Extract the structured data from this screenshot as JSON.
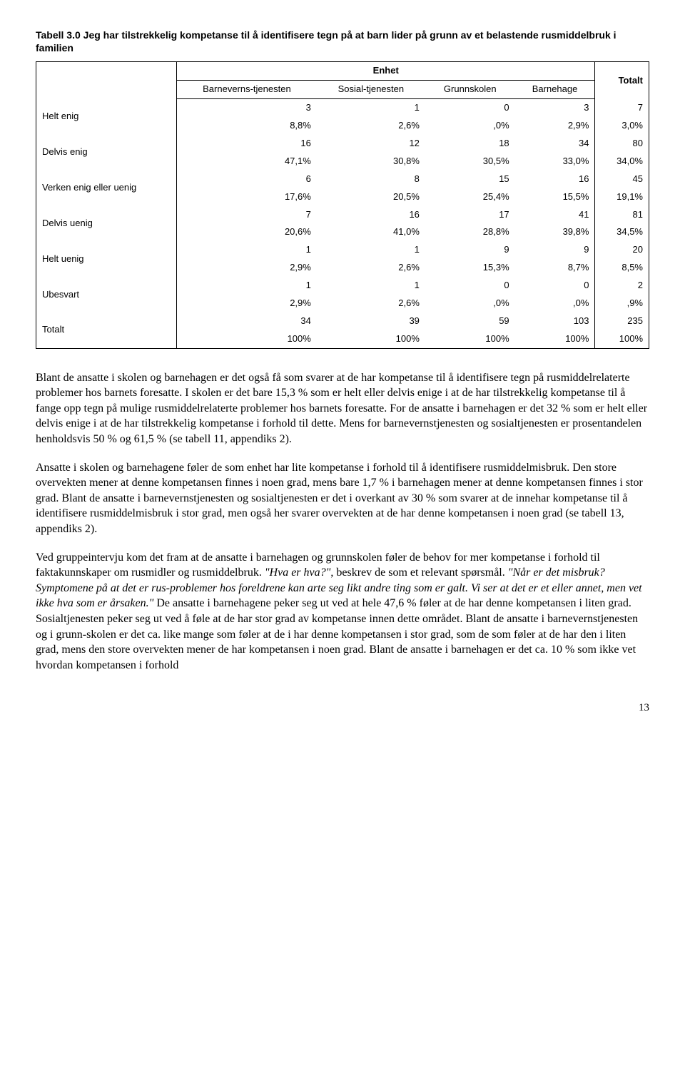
{
  "table": {
    "title": "Tabell 3.0 Jeg har tilstrekkelig kompetanse til å identifisere tegn på at barn lider på grunn av et belastende rusmiddelbruk i familien",
    "group_header": "Enhet",
    "columns": [
      "Barneverns-tjenesten",
      "Sosial-tjenesten",
      "Grunnskolen",
      "Barnehage"
    ],
    "totalt_header": "Totalt",
    "rows": [
      {
        "label": "Helt enig",
        "counts": [
          "3",
          "1",
          "0",
          "3",
          "7"
        ],
        "pcts": [
          "8,8%",
          "2,6%",
          ",0%",
          "2,9%",
          "3,0%"
        ]
      },
      {
        "label": "Delvis enig",
        "counts": [
          "16",
          "12",
          "18",
          "34",
          "80"
        ],
        "pcts": [
          "47,1%",
          "30,8%",
          "30,5%",
          "33,0%",
          "34,0%"
        ]
      },
      {
        "label": "Verken enig eller uenig",
        "counts": [
          "6",
          "8",
          "15",
          "16",
          "45"
        ],
        "pcts": [
          "17,6%",
          "20,5%",
          "25,4%",
          "15,5%",
          "19,1%"
        ]
      },
      {
        "label": "Delvis uenig",
        "counts": [
          "7",
          "16",
          "17",
          "41",
          "81"
        ],
        "pcts": [
          "20,6%",
          "41,0%",
          "28,8%",
          "39,8%",
          "34,5%"
        ]
      },
      {
        "label": "Helt uenig",
        "counts": [
          "1",
          "1",
          "9",
          "9",
          "20"
        ],
        "pcts": [
          "2,9%",
          "2,6%",
          "15,3%",
          "8,7%",
          "8,5%"
        ]
      },
      {
        "label": "Ubesvart",
        "counts": [
          "1",
          "1",
          "0",
          "0",
          "2"
        ],
        "pcts": [
          "2,9%",
          "2,6%",
          ",0%",
          ",0%",
          ",9%"
        ]
      },
      {
        "label": "Totalt",
        "counts": [
          "34",
          "39",
          "59",
          "103",
          "235"
        ],
        "pcts": [
          "100%",
          "100%",
          "100%",
          "100%",
          "100%"
        ]
      }
    ]
  },
  "paragraphs": {
    "p1": "Blant de ansatte i skolen og barnehagen er det også få som svarer at de har kompetanse til å identifisere tegn på rusmiddelrelaterte problemer hos barnets foresatte. I skolen er det bare 15,3 % som er helt eller delvis enige i at de har tilstrekkelig kompetanse til å fange opp tegn på mulige rusmiddelrelaterte problemer hos barnets foresatte. For de ansatte i barnehagen er det 32 % som er helt eller delvis enige i at de har tilstrekkelig kompetanse i forhold til dette. Mens for barnevernstjenesten og sosialtjenesten er prosentandelen henholdsvis 50 % og 61,5 % (se tabell 11, appendiks 2).",
    "p2": "Ansatte i skolen og barnehagene føler de som enhet har lite kompetanse i forhold til å identifisere rusmiddelmisbruk. Den store overvekten mener at denne kompetansen finnes i noen grad, mens bare 1,7 % i barnehagen mener at denne kompetansen finnes i stor grad. Blant de ansatte i barnevernstjenesten og sosialtjenesten er det i overkant av 30 %  som svarer at de innehar kompetanse til å identifisere rusmiddelmisbruk i stor grad, men også her svarer overvekten at de har denne kompetansen i noen grad (se tabell 13, appendiks 2).",
    "p3_a": "Ved gruppeintervju kom det fram at de ansatte i barnehagen og grunnskolen føler de behov for mer kompetanse i forhold til faktakunnskaper om rusmidler og rusmiddelbruk. ",
    "p3_i1": "Hva er hva?",
    "p3_b": ", beskrev de som et relevant spørsmål. ",
    "p3_i2": "Når er det misbruk? Symptomene på at det er rus-problemer hos foreldrene kan arte seg likt andre ting som er galt. Vi ser at det er et eller annet, men vet ikke hva som er årsaken.",
    "p3_c": " De ansatte i barnehagene peker seg ut ved at hele 47,6 % føler at de har denne kompetansen i liten grad. Sosialtjenesten peker seg ut ved å føle at de har stor grad av kompetanse innen dette området. Blant de ansatte i barnevernstjenesten og i grunn-skolen er det ca. like mange som føler at de i har denne kompetansen i stor grad, som de som føler at de har den i liten grad, mens den store overvekten mener de har kompetansen i noen grad. Blant de ansatte i barnehagen er det ca. 10 % som ikke vet hvordan kompetansen i forhold"
  },
  "page_number": "13"
}
